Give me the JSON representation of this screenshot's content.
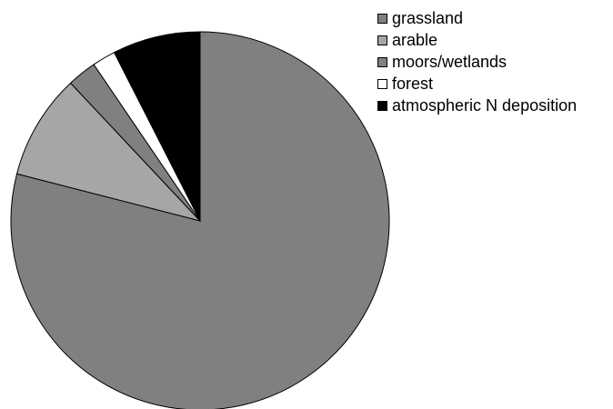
{
  "chart_data": {
    "type": "pie",
    "title": "",
    "categories": [
      "grassland",
      "arable",
      "moors/wetlands",
      "forest",
      "atmospheric N deposition"
    ],
    "values": [
      79,
      9,
      2.5,
      2,
      7.5
    ],
    "unit": "",
    "colors": [
      "#808080",
      "#a6a6a6",
      "#808080",
      "#ffffff",
      "#000000"
    ],
    "start": "12 o'clock",
    "direction": "clockwise",
    "legend_position": "top-right"
  }
}
